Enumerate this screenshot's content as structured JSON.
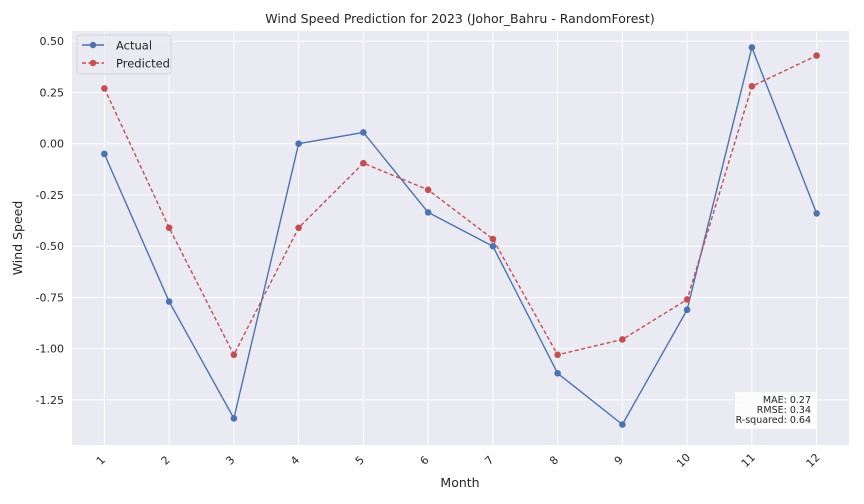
{
  "chart_data": {
    "type": "line",
    "title": "Wind Speed Prediction for 2023 (Johor_Bahru - RandomForest)",
    "xlabel": "Month",
    "ylabel": "Wind Speed",
    "categories": [
      "1",
      "2",
      "3",
      "4",
      "5",
      "6",
      "7",
      "8",
      "9",
      "10",
      "11",
      "12"
    ],
    "x": [
      1,
      2,
      3,
      4,
      5,
      6,
      7,
      8,
      9,
      10,
      11,
      12
    ],
    "xlim": [
      0.5,
      12.5
    ],
    "ylim": [
      -1.47,
      0.55
    ],
    "yticks": [
      "0.50",
      "0.25",
      "0.00",
      "-0.25",
      "-0.50",
      "-0.75",
      "-1.00",
      "-1.25"
    ],
    "ytick_values": [
      0.5,
      0.25,
      0.0,
      -0.25,
      -0.5,
      -0.75,
      -1.0,
      -1.25
    ],
    "grid": true,
    "legend_position": "top-left",
    "series": [
      {
        "name": "Actual",
        "color": "#4c72b0",
        "style": "solid",
        "marker": "circle",
        "values": [
          -0.05,
          -0.77,
          -1.34,
          0.0,
          0.055,
          -0.335,
          -0.5,
          -1.12,
          -1.37,
          -0.81,
          0.47,
          -0.34
        ]
      },
      {
        "name": "Predicted",
        "color": "#c44e52",
        "style": "dashed",
        "marker": "circle",
        "values": [
          0.27,
          -0.41,
          -1.03,
          -0.41,
          -0.095,
          -0.225,
          -0.465,
          -1.03,
          -0.955,
          -0.76,
          0.28,
          0.43
        ]
      }
    ],
    "annotation": {
      "lines": [
        "MAE: 0.27",
        "RMSE: 0.34",
        "R-squared: 0.64"
      ],
      "position": "bottom-right"
    }
  }
}
